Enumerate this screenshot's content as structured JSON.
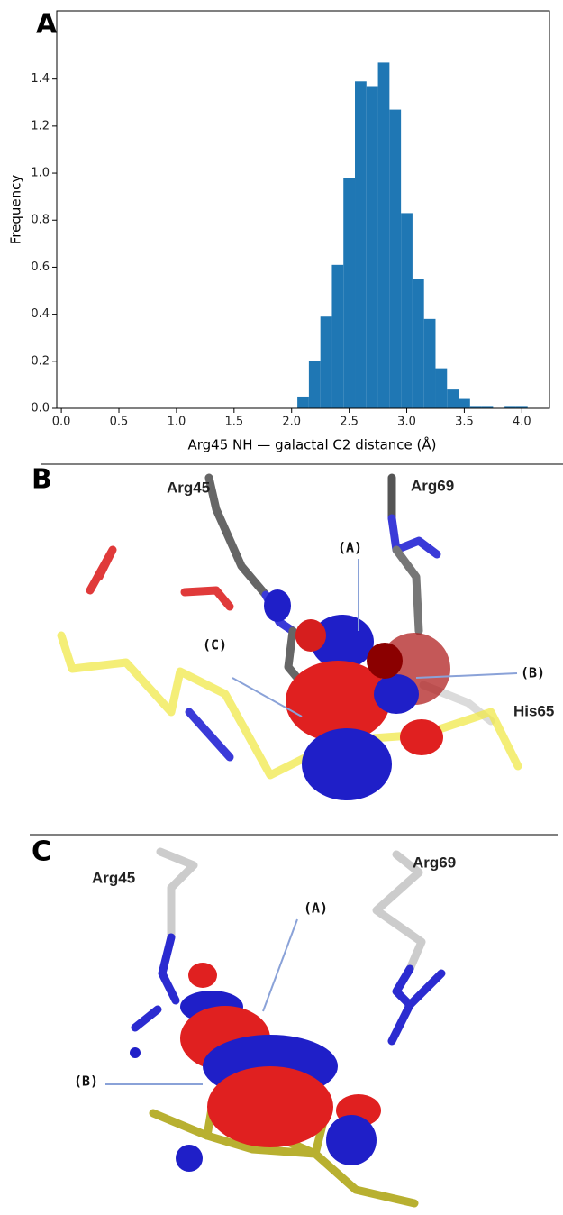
{
  "chart_data": {
    "type": "histogram",
    "panel_label": "A",
    "xlabel": "Arg45 NH — galactal C2 distance (Å)",
    "ylabel": "Frequency",
    "bins": [
      2.05,
      2.15,
      2.25,
      2.35,
      2.45,
      2.55,
      2.65,
      2.75,
      2.85,
      2.95,
      3.05,
      3.15,
      3.25,
      3.35,
      3.45,
      3.55,
      3.65,
      3.75,
      3.85,
      3.95,
      4.05
    ],
    "values": [
      0.05,
      0.2,
      0.39,
      0.61,
      0.98,
      1.39,
      1.37,
      1.47,
      1.27,
      0.83,
      0.55,
      0.38,
      0.17,
      0.08,
      0.04,
      0.01,
      0.01,
      0,
      0.01,
      0.01
    ],
    "color": "#1f77b4",
    "xlim": [
      -0.04,
      4.24
    ],
    "ylim": [
      0,
      1.69
    ],
    "xticks": [
      {
        "value": 0,
        "label": "0.0"
      },
      0.5,
      {
        "value": 1,
        "label": "1.0"
      },
      1.5,
      {
        "value": 2,
        "label": "2.0"
      },
      2.5,
      {
        "value": 3,
        "label": "3.0"
      },
      3.5,
      {
        "value": 4,
        "label": "4.0"
      }
    ],
    "yticks": [
      {
        "value": 0,
        "label": "0.0"
      },
      0.2,
      0.4,
      0.6,
      0.8,
      {
        "value": 1,
        "label": "1.0"
      },
      1.2,
      1.4
    ]
  },
  "panel_b": {
    "panel_label": "B",
    "labels": [
      "Arg45",
      "Arg69",
      "(A)",
      "(B)",
      "(C)",
      "His65"
    ]
  },
  "panel_c": {
    "panel_label": "C",
    "labels": [
      "Arg45",
      "Arg69",
      "(A)",
      "(B)"
    ]
  }
}
